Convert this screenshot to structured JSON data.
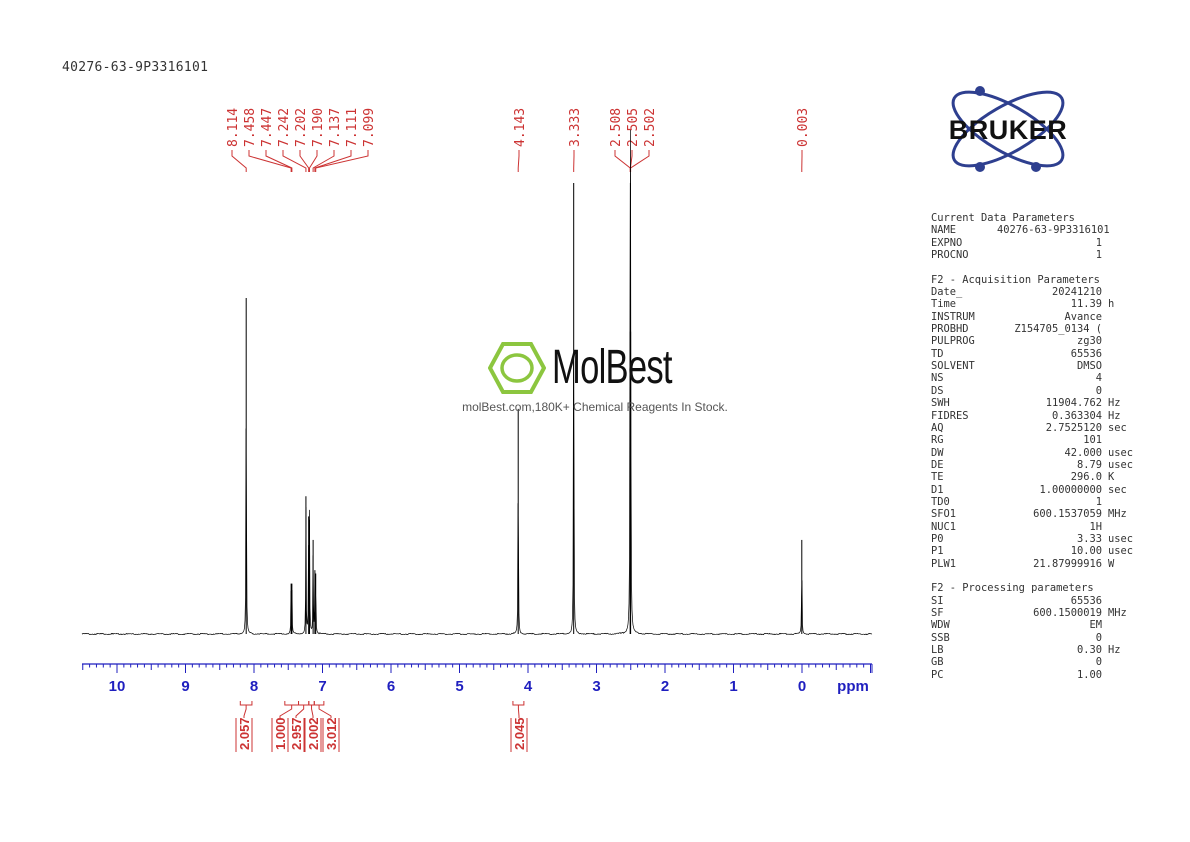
{
  "sample_id": "40276-63-9P3316101",
  "logo": {
    "text": "BRUKER",
    "brand_color": "#2e3f8f"
  },
  "watermark": {
    "name": "MolBest",
    "tagline": "molBest.com,180K+ Chemical Reagents In Stock.",
    "accent_color": "#8cc63f"
  },
  "chart_data": {
    "type": "line",
    "xlabel": "ppm",
    "xlim": [
      10.5,
      -1.0
    ],
    "x_reversed": true,
    "ticks": [
      "10",
      "9",
      "8",
      "7",
      "6",
      "5",
      "4",
      "3",
      "2",
      "1",
      "0"
    ],
    "peaks": [
      {
        "ppm": 8.114,
        "height": 1.0
      },
      {
        "ppm": 7.458,
        "height": 0.15
      },
      {
        "ppm": 7.447,
        "height": 0.15
      },
      {
        "ppm": 7.242,
        "height": 0.41
      },
      {
        "ppm": 7.202,
        "height": 0.35
      },
      {
        "ppm": 7.19,
        "height": 0.34
      },
      {
        "ppm": 7.137,
        "height": 0.28
      },
      {
        "ppm": 7.111,
        "height": 0.19
      },
      {
        "ppm": 7.099,
        "height": 0.18
      },
      {
        "ppm": 4.143,
        "height": 0.67
      },
      {
        "ppm": 3.333,
        "height": 1.35
      },
      {
        "ppm": 2.508,
        "height": 0.9
      },
      {
        "ppm": 2.505,
        "height": 1.35
      },
      {
        "ppm": 2.502,
        "height": 0.9
      },
      {
        "ppm": 0.003,
        "height": 0.28
      }
    ],
    "peak_labels": [
      "8.114",
      "7.458",
      "7.447",
      "7.242",
      "7.202",
      "7.190",
      "7.137",
      "7.111",
      "7.099",
      "4.143",
      "3.333",
      "2.508",
      "2.505",
      "2.502",
      "0.003"
    ],
    "integrals": [
      {
        "from": 8.2,
        "to": 8.03,
        "value": "2.057"
      },
      {
        "from": 7.55,
        "to": 7.35,
        "value": "1.000"
      },
      {
        "from": 7.35,
        "to": 7.2,
        "value": "2.957"
      },
      {
        "from": 7.2,
        "to": 7.12,
        "value": "2.002"
      },
      {
        "from": 7.12,
        "to": 6.98,
        "value": "3.012"
      },
      {
        "from": 4.22,
        "to": 4.06,
        "value": "2.045"
      }
    ],
    "colors": {
      "spectrum": "#000000",
      "annotation": "#cc3333",
      "axis": "#1f1fbf"
    }
  },
  "parameters": {
    "groups": [
      {
        "title": "Current Data Parameters",
        "rows": [
          {
            "name": "NAME",
            "value": "40276-63-9P3316101",
            "unit": ""
          },
          {
            "name": "EXPNO",
            "value": "1",
            "unit": ""
          },
          {
            "name": "PROCNO",
            "value": "1",
            "unit": ""
          }
        ]
      },
      {
        "title": "F2 - Acquisition Parameters",
        "rows": [
          {
            "name": "Date_",
            "value": "20241210",
            "unit": ""
          },
          {
            "name": "Time",
            "value": "11.39",
            "unit": "h"
          },
          {
            "name": "INSTRUM",
            "value": "Avance",
            "unit": ""
          },
          {
            "name": "PROBHD",
            "value": "Z154705_0134 (",
            "unit": ""
          },
          {
            "name": "PULPROG",
            "value": "zg30",
            "unit": ""
          },
          {
            "name": "TD",
            "value": "65536",
            "unit": ""
          },
          {
            "name": "SOLVENT",
            "value": "DMSO",
            "unit": ""
          },
          {
            "name": "NS",
            "value": "4",
            "unit": ""
          },
          {
            "name": "DS",
            "value": "0",
            "unit": ""
          },
          {
            "name": "SWH",
            "value": "11904.762",
            "unit": "Hz"
          },
          {
            "name": "FIDRES",
            "value": "0.363304",
            "unit": "Hz"
          },
          {
            "name": "AQ",
            "value": "2.7525120",
            "unit": "sec"
          },
          {
            "name": "RG",
            "value": "101",
            "unit": ""
          },
          {
            "name": "DW",
            "value": "42.000",
            "unit": "usec"
          },
          {
            "name": "DE",
            "value": "8.79",
            "unit": "usec"
          },
          {
            "name": "TE",
            "value": "296.0",
            "unit": "K"
          },
          {
            "name": "D1",
            "value": "1.00000000",
            "unit": "sec"
          },
          {
            "name": "TD0",
            "value": "1",
            "unit": ""
          },
          {
            "name": "SFO1",
            "value": "600.1537059",
            "unit": "MHz"
          },
          {
            "name": "NUC1",
            "value": "1H",
            "unit": ""
          },
          {
            "name": "P0",
            "value": "3.33",
            "unit": "usec"
          },
          {
            "name": "P1",
            "value": "10.00",
            "unit": "usec"
          },
          {
            "name": "PLW1",
            "value": "21.87999916",
            "unit": "W"
          }
        ]
      },
      {
        "title": "F2 - Processing parameters",
        "rows": [
          {
            "name": "SI",
            "value": "65536",
            "unit": ""
          },
          {
            "name": "SF",
            "value": "600.1500019",
            "unit": "MHz"
          },
          {
            "name": "WDW",
            "value": "EM",
            "unit": ""
          },
          {
            "name": "SSB",
            "value": "0",
            "unit": ""
          },
          {
            "name": "LB",
            "value": "0.30",
            "unit": "Hz"
          },
          {
            "name": "GB",
            "value": "0",
            "unit": ""
          },
          {
            "name": "PC",
            "value": "1.00",
            "unit": ""
          }
        ]
      }
    ]
  }
}
